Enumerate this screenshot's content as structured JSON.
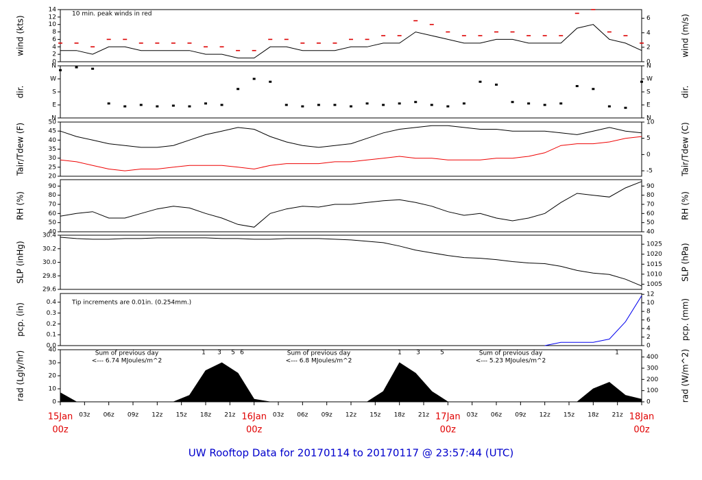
{
  "title": "UW Rooftop Data for 20170114  to  20170117 @ 23:57:44  (UTC)",
  "time_axis": {
    "x": [
      0,
      2,
      4,
      6,
      8,
      10,
      12,
      14,
      16,
      18,
      20,
      22,
      24,
      26,
      28,
      30,
      32,
      34,
      36,
      38,
      40,
      42,
      44,
      46,
      48,
      50,
      52,
      54,
      56,
      58,
      60,
      62,
      64,
      66,
      68,
      70,
      72
    ],
    "xlim": [
      0,
      72
    ],
    "xticks": [
      {
        "value": 0,
        "label": "15Jan",
        "sub": "00z"
      },
      {
        "value": 3,
        "label": "03z"
      },
      {
        "value": 6,
        "label": "06z"
      },
      {
        "value": 9,
        "label": "09z"
      },
      {
        "value": 12,
        "label": "12z"
      },
      {
        "value": 15,
        "label": "15z"
      },
      {
        "value": 18,
        "label": "18z"
      },
      {
        "value": 21,
        "label": "21z"
      },
      {
        "value": 24,
        "label": "16Jan",
        "sub": "00z"
      },
      {
        "value": 27,
        "label": "03z"
      },
      {
        "value": 30,
        "label": "06z"
      },
      {
        "value": 33,
        "label": "09z"
      },
      {
        "value": 36,
        "label": "12z"
      },
      {
        "value": 39,
        "label": "15z"
      },
      {
        "value": 42,
        "label": "18z"
      },
      {
        "value": 45,
        "label": "21z"
      },
      {
        "value": 48,
        "label": "17Jan",
        "sub": "00z"
      },
      {
        "value": 51,
        "label": "03z"
      },
      {
        "value": 54,
        "label": "06z"
      },
      {
        "value": 57,
        "label": "09z"
      },
      {
        "value": 60,
        "label": "12z"
      },
      {
        "value": 63,
        "label": "15z"
      },
      {
        "value": 66,
        "label": "18z"
      },
      {
        "value": 69,
        "label": "21z"
      },
      {
        "value": 72,
        "label": "18Jan",
        "sub": "00z"
      }
    ]
  },
  "chart_data": [
    {
      "type": "line",
      "ylabel": "wind (kts)",
      "y2label": "wind (m/s)",
      "ylim": [
        0,
        14
      ],
      "yticks": [
        0,
        2,
        4,
        6,
        8,
        10,
        12,
        14
      ],
      "y2lim": [
        0,
        7.2
      ],
      "y2ticks": [
        0,
        2,
        4,
        6
      ],
      "annotations": [
        "10 min. peak winds in red"
      ],
      "annotation_color": "#cc0000",
      "series": [
        {
          "color": "#000000",
          "values": [
            3,
            3,
            2,
            4,
            4,
            3,
            3,
            3,
            3,
            2,
            2,
            1,
            1,
            4,
            4,
            3,
            3,
            3,
            4,
            4,
            5,
            5,
            8,
            7,
            6,
            5,
            5,
            6,
            6,
            5,
            5,
            5,
            9,
            10,
            6,
            5,
            3
          ]
        },
        {
          "color": "#dd0000",
          "marker": "dash",
          "values": [
            5,
            5,
            4,
            6,
            6,
            5,
            5,
            5,
            5,
            4,
            4,
            3,
            3,
            6,
            6,
            5,
            5,
            5,
            6,
            6,
            7,
            7,
            11,
            10,
            8,
            7,
            7,
            8,
            8,
            7,
            7,
            7,
            13,
            14,
            8,
            7,
            5
          ]
        }
      ]
    },
    {
      "type": "scatter",
      "ylabel": "dir.",
      "y2label": "dir.",
      "ylim": [
        0,
        360
      ],
      "yticks": [
        {
          "value": 0,
          "label": "N"
        },
        {
          "value": 90,
          "label": "E"
        },
        {
          "value": 180,
          "label": "S"
        },
        {
          "value": 270,
          "label": "W"
        },
        {
          "value": 360,
          "label": "N"
        }
      ],
      "y2lim": [
        0,
        360
      ],
      "y2ticks": [
        {
          "value": 0,
          "label": "N"
        },
        {
          "value": 90,
          "label": "E"
        },
        {
          "value": 180,
          "label": "S"
        },
        {
          "value": 270,
          "label": "W"
        },
        {
          "value": 360,
          "label": "N"
        }
      ],
      "series": [
        {
          "color": "#000000",
          "values": [
            330,
            350,
            340,
            100,
            80,
            90,
            80,
            85,
            80,
            100,
            90,
            200,
            270,
            250,
            90,
            80,
            90,
            90,
            80,
            100,
            90,
            100,
            110,
            90,
            80,
            100,
            250,
            230,
            110,
            100,
            90,
            100,
            220,
            200,
            80,
            70,
            250
          ]
        }
      ]
    },
    {
      "type": "line",
      "ylabel": "Tair/Tdew (F)",
      "y2label": "Tair/Tdew (C)",
      "ylim": [
        20,
        50
      ],
      "yticks": [
        20,
        25,
        30,
        35,
        40,
        45,
        50
      ],
      "y2lim": [
        -6.67,
        10
      ],
      "y2ticks": [
        -5,
        0,
        5,
        10
      ],
      "series": [
        {
          "color": "#000000",
          "values": [
            45,
            42,
            40,
            38,
            37,
            36,
            36,
            37,
            40,
            43,
            45,
            47,
            46,
            42,
            39,
            37,
            36,
            37,
            38,
            41,
            44,
            46,
            47,
            48,
            48,
            47,
            46,
            46,
            45,
            45,
            45,
            44,
            43,
            45,
            47,
            45,
            44
          ]
        },
        {
          "color": "#ee0000",
          "values": [
            29,
            28,
            26,
            24,
            23,
            24,
            24,
            25,
            26,
            26,
            26,
            25,
            24,
            26,
            27,
            27,
            27,
            28,
            28,
            29,
            30,
            31,
            30,
            30,
            29,
            29,
            29,
            30,
            30,
            31,
            33,
            37,
            38,
            38,
            39,
            41,
            42
          ]
        }
      ]
    },
    {
      "type": "line",
      "ylabel": "RH (%)",
      "y2label": "RH (%)",
      "ylim": [
        40,
        97
      ],
      "yticks": [
        40,
        50,
        60,
        70,
        80,
        90
      ],
      "y2lim": [
        40,
        97
      ],
      "y2ticks": [
        40,
        50,
        60,
        70,
        80,
        90
      ],
      "series": [
        {
          "color": "#000000",
          "values": [
            57,
            60,
            62,
            55,
            55,
            60,
            65,
            68,
            66,
            60,
            55,
            48,
            45,
            60,
            65,
            68,
            67,
            70,
            70,
            72,
            74,
            75,
            72,
            68,
            62,
            58,
            60,
            55,
            52,
            55,
            60,
            72,
            82,
            80,
            78,
            88,
            95
          ]
        }
      ]
    },
    {
      "type": "line",
      "ylabel": "SLP (inHg)",
      "y2label": "SLP (hPa)",
      "ylim": [
        29.6,
        30.4
      ],
      "yticks": [
        29.6,
        29.8,
        {
          "value": 30,
          "label": "30.0"
        },
        30.2,
        30.4
      ],
      "y2lim": [
        1002.4,
        1029.5
      ],
      "y2ticks": [
        1005,
        1010,
        1015,
        1020,
        1025
      ],
      "series": [
        {
          "color": "#000000",
          "values": [
            30.37,
            30.35,
            30.34,
            30.34,
            30.35,
            30.35,
            30.36,
            30.36,
            30.36,
            30.36,
            30.35,
            30.35,
            30.34,
            30.34,
            30.35,
            30.35,
            30.35,
            30.34,
            30.33,
            30.31,
            30.29,
            30.24,
            30.18,
            30.14,
            30.1,
            30.07,
            30.06,
            30.04,
            30.01,
            29.99,
            29.98,
            29.94,
            29.88,
            29.84,
            29.82,
            29.75,
            29.65
          ]
        }
      ]
    },
    {
      "type": "line",
      "ylabel": "pcp. (in)",
      "y2label": "pcp. (mm)",
      "ylim": [
        0,
        0.48
      ],
      "yticks": [
        {
          "value": 0,
          "label": "0.0"
        },
        0.1,
        0.2,
        0.3,
        0.4
      ],
      "y2lim": [
        0,
        12.19
      ],
      "y2ticks": [
        0,
        2,
        4,
        6,
        8,
        10,
        12
      ],
      "annotations": [
        "Tip increments are 0.01in. (0.254mm.)"
      ],
      "annotation_color": "#0000cc",
      "series": [
        {
          "color": "#0000ee",
          "values": [
            null,
            null,
            null,
            null,
            null,
            null,
            null,
            null,
            null,
            null,
            null,
            null,
            null,
            null,
            null,
            null,
            null,
            null,
            null,
            null,
            null,
            null,
            null,
            null,
            null,
            null,
            null,
            null,
            null,
            null,
            0,
            0.03,
            0.03,
            0.03,
            0.06,
            0.22,
            0.46
          ]
        }
      ]
    },
    {
      "type": "area",
      "ylabel": "rad (Lgly/hr)",
      "y2label": "rad (W/m^2)",
      "ylim": [
        0,
        40
      ],
      "yticks": [
        0,
        10,
        20,
        30,
        40
      ],
      "y2lim": [
        0,
        465
      ],
      "y2ticks": [
        0,
        100,
        200,
        300,
        400
      ],
      "annotations": [
        "Sum of previous day",
        "<--- 6.74 MJoules/m^2",
        "Sum of previous day",
        "<--- 6.8 MJoules/m^2",
        "Sum of previous day",
        "<--- 5.23 MJoules/m^2",
        "1",
        "3",
        "5",
        "6",
        "1",
        "3",
        "5",
        "1"
      ],
      "annotation_color": "#9900cc",
      "series": [
        {
          "color": "#000000",
          "values": [
            7,
            0,
            0,
            0,
            0,
            0,
            0,
            0,
            5,
            24,
            30,
            22,
            2,
            0,
            0,
            0,
            0,
            0,
            0,
            0,
            8,
            30,
            22,
            8,
            0,
            0,
            0,
            0,
            0,
            0,
            0,
            0,
            0,
            10,
            15,
            5,
            2
          ]
        }
      ]
    }
  ]
}
